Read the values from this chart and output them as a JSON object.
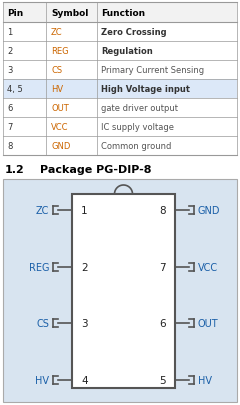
{
  "title_section": "1.2",
  "title_text": "Package PG-DIP-8",
  "table_headers": [
    "Pin",
    "Symbol",
    "Function"
  ],
  "table_rows": [
    [
      "1",
      "ZC",
      "Zero Crossing",
      true
    ],
    [
      "2",
      "REG",
      "Regulation",
      true
    ],
    [
      "3",
      "CS",
      "Primary Current Sensing",
      false
    ],
    [
      "4, 5",
      "HV",
      "High Voltage input",
      true
    ],
    [
      "6",
      "OUT",
      "gate driver output",
      false
    ],
    [
      "7",
      "VCC",
      "IC supply voltage",
      false
    ],
    [
      "8",
      "GND",
      "Common ground",
      false
    ]
  ],
  "left_pins": [
    {
      "num": "1",
      "label": "ZC"
    },
    {
      "num": "2",
      "label": "REG"
    },
    {
      "num": "3",
      "label": "CS"
    },
    {
      "num": "4",
      "label": "HV"
    }
  ],
  "right_pins": [
    {
      "num": "8",
      "label": "GND"
    },
    {
      "num": "7",
      "label": "VCC"
    },
    {
      "num": "6",
      "label": "OUT"
    },
    {
      "num": "5",
      "label": "HV"
    }
  ],
  "bg_color": "#ffffff",
  "header_bg": "#f2f2f2",
  "highlight_bg": "#dce8f8",
  "symbol_color": "#cc6600",
  "func_normal_color": "#555555",
  "func_bold_color": "#333333",
  "pin_color": "#333333",
  "diagram_bg": "#d8e4f0",
  "chip_fill": "#ffffff",
  "chip_border": "#555555",
  "pin_label_color": "#1a5fa8"
}
